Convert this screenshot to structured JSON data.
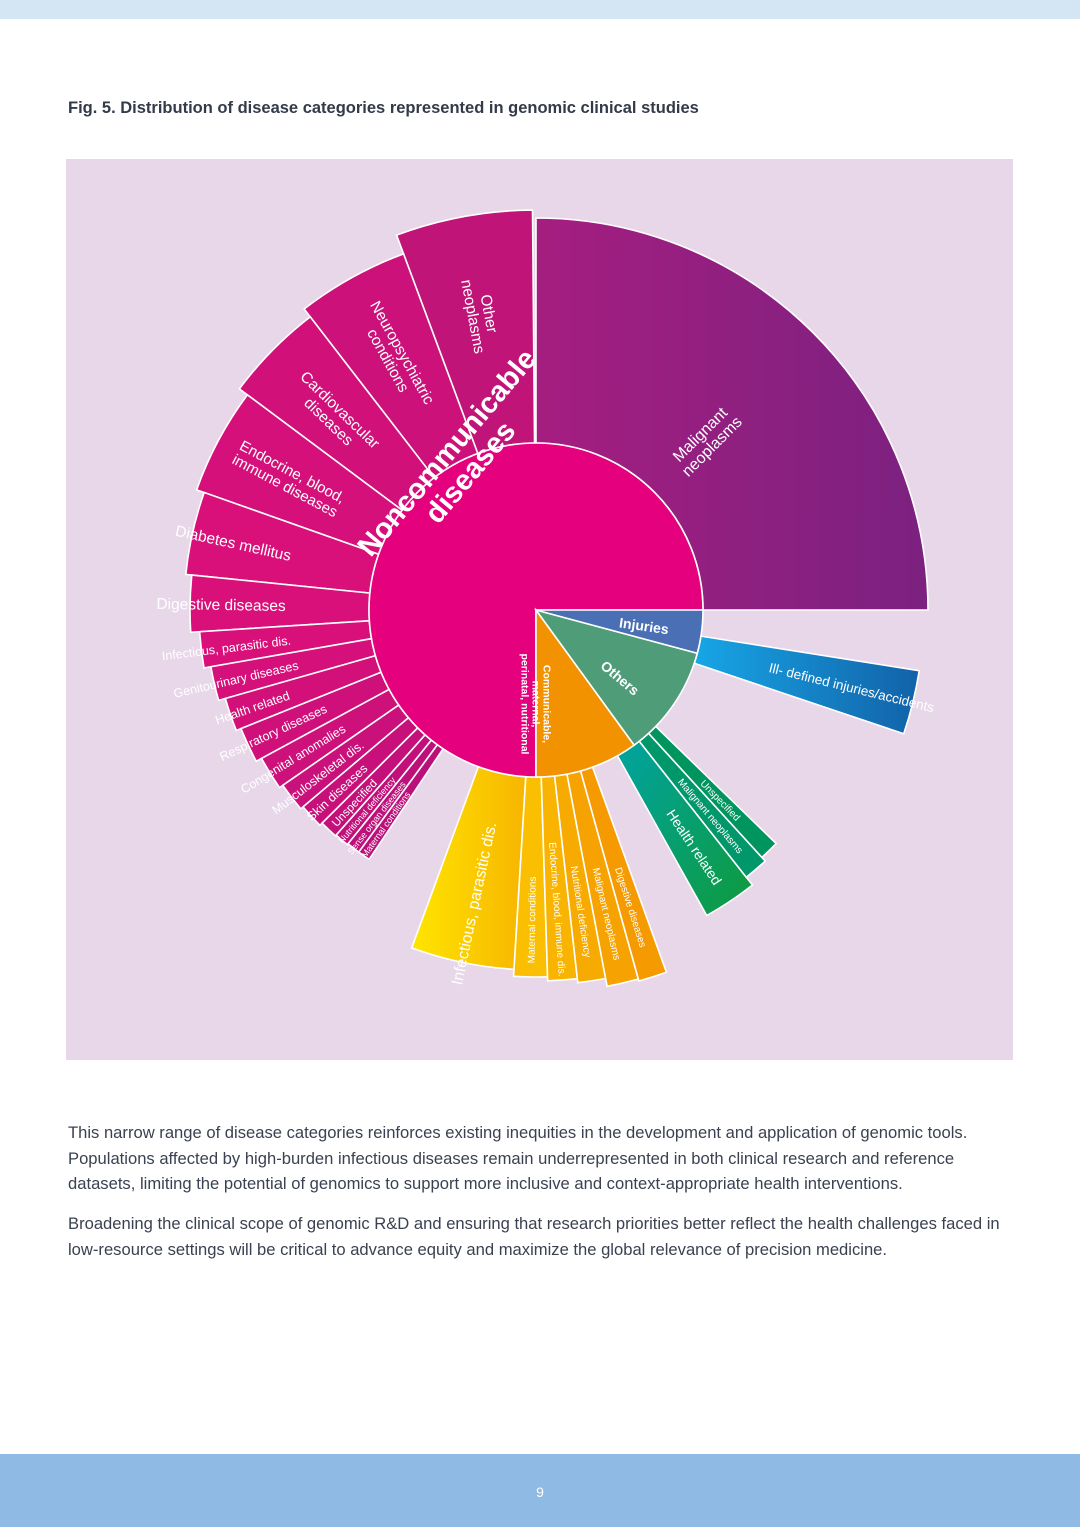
{
  "page": {
    "figure_title": "Fig. 5. Distribution of disease categories represented in genomic clinical studies",
    "paragraphs": [
      "This narrow range of disease categories reinforces existing inequities in the development and application of genomic tools. Populations affected by high-burden infectious diseases remain underrepresented in both clinical research and reference datasets, limiting the potential of genomics to support more inclusive and context-appropriate health interventions.",
      "Broadening the clinical scope of genomic R&D and ensuring that research priorities better reflect the health challenges faced in low-resource settings will be critical to advance equity and maximize the global relevance of precision medicine."
    ],
    "page_number": "9"
  },
  "colors": {
    "top_band": "#d4e6f4",
    "footer": "#8ebae3",
    "chart_background": "#e8d6e9",
    "noncommunicable": "#e5007e",
    "communicable": "#f39200",
    "injuries": "#4a6fb5",
    "others": "#4e9c78",
    "malignant": "#8a1f7c"
  },
  "chart_data": {
    "type": "sunburst",
    "title": "Fig. 5. Distribution of disease categories represented in genomic clinical studies",
    "unit": "approximate share of studies (%)",
    "categories": [
      {
        "name": "Noncommunicable diseases",
        "value": 75,
        "color": "#e5007e",
        "children": [
          {
            "name": "Malignant neoplasms",
            "value": 25.0,
            "color": "#9a1e82"
          },
          {
            "name": "Other neoplasms",
            "value": 8.2,
            "color": "#c01478"
          },
          {
            "name": "Neuropsychiatric conditions",
            "value": 7.8,
            "color": "#cc127a"
          },
          {
            "name": "Cardiovascular diseases",
            "value": 7.0,
            "color": "#d1107a"
          },
          {
            "name": "Endocrine, blood, immune diseases",
            "value": 6.0,
            "color": "#d5107a"
          },
          {
            "name": "Diabetes mellitus",
            "value": 4.5,
            "color": "#d9107a"
          },
          {
            "name": "Digestive diseases",
            "value": 3.2,
            "color": "#d9107a"
          },
          {
            "name": "Infectious, parasitic dis.",
            "value": 2.0,
            "color": "#d9107a"
          },
          {
            "name": "Genitourinary diseases",
            "value": 1.9,
            "color": "#d6107a"
          },
          {
            "name": "Health related",
            "value": 1.8,
            "color": "#d3107a"
          },
          {
            "name": "Respiratory diseases",
            "value": 1.8,
            "color": "#d0107a"
          },
          {
            "name": "Congenital anomalies",
            "value": 1.5,
            "color": "#cd107a"
          },
          {
            "name": "Musculoskeletal dis.",
            "value": 1.3,
            "color": "#ca107a"
          },
          {
            "name": "Skin diseases",
            "value": 1.0,
            "color": "#c7107a"
          },
          {
            "name": "Unspecified",
            "value": 0.7,
            "color": "#c4107a"
          },
          {
            "name": "Nutritional deficiency",
            "value": 0.5,
            "color": "#c1107a"
          },
          {
            "name": "Sense organ diseases",
            "value": 0.4,
            "color": "#be107a"
          },
          {
            "name": "Maternal conditions",
            "value": 0.4,
            "color": "#bb107a"
          }
        ]
      },
      {
        "name": "Communicable, maternal, perinatal, nutritional",
        "value": 12,
        "color": "#f39200",
        "children": [
          {
            "name": "Infectious, parasitic dis.",
            "value": 5.2,
            "color": "#f7c600"
          },
          {
            "name": "Maternal conditions",
            "value": 1.3,
            "color": "#f9bf00"
          },
          {
            "name": "Endocrine, blood, immune dis.",
            "value": 1.3,
            "color": "#f8b400"
          },
          {
            "name": "Nutritional deficiency",
            "value": 1.3,
            "color": "#f7aa00"
          },
          {
            "name": "Malignant neoplasms",
            "value": 1.0,
            "color": "#f6a200"
          },
          {
            "name": "Digestive diseases",
            "value": 1.0,
            "color": "#f59a00"
          }
        ]
      },
      {
        "name": "Others",
        "value": 7,
        "color": "#4e9c78",
        "children": [
          {
            "name": "Health related",
            "value": 4.5,
            "color": "#009a74"
          },
          {
            "name": "Malignant neoplasms",
            "value": 0.5,
            "color": "#00976a"
          },
          {
            "name": "Unspecified",
            "value": 0.5,
            "color": "#00945e"
          }
        ]
      },
      {
        "name": "Injuries",
        "value": 5,
        "color": "#4a6fb5",
        "children": [
          {
            "name": "Ill- defined injuries/accidents",
            "value": 2.5,
            "color": "#0f78c8"
          }
        ]
      }
    ]
  }
}
